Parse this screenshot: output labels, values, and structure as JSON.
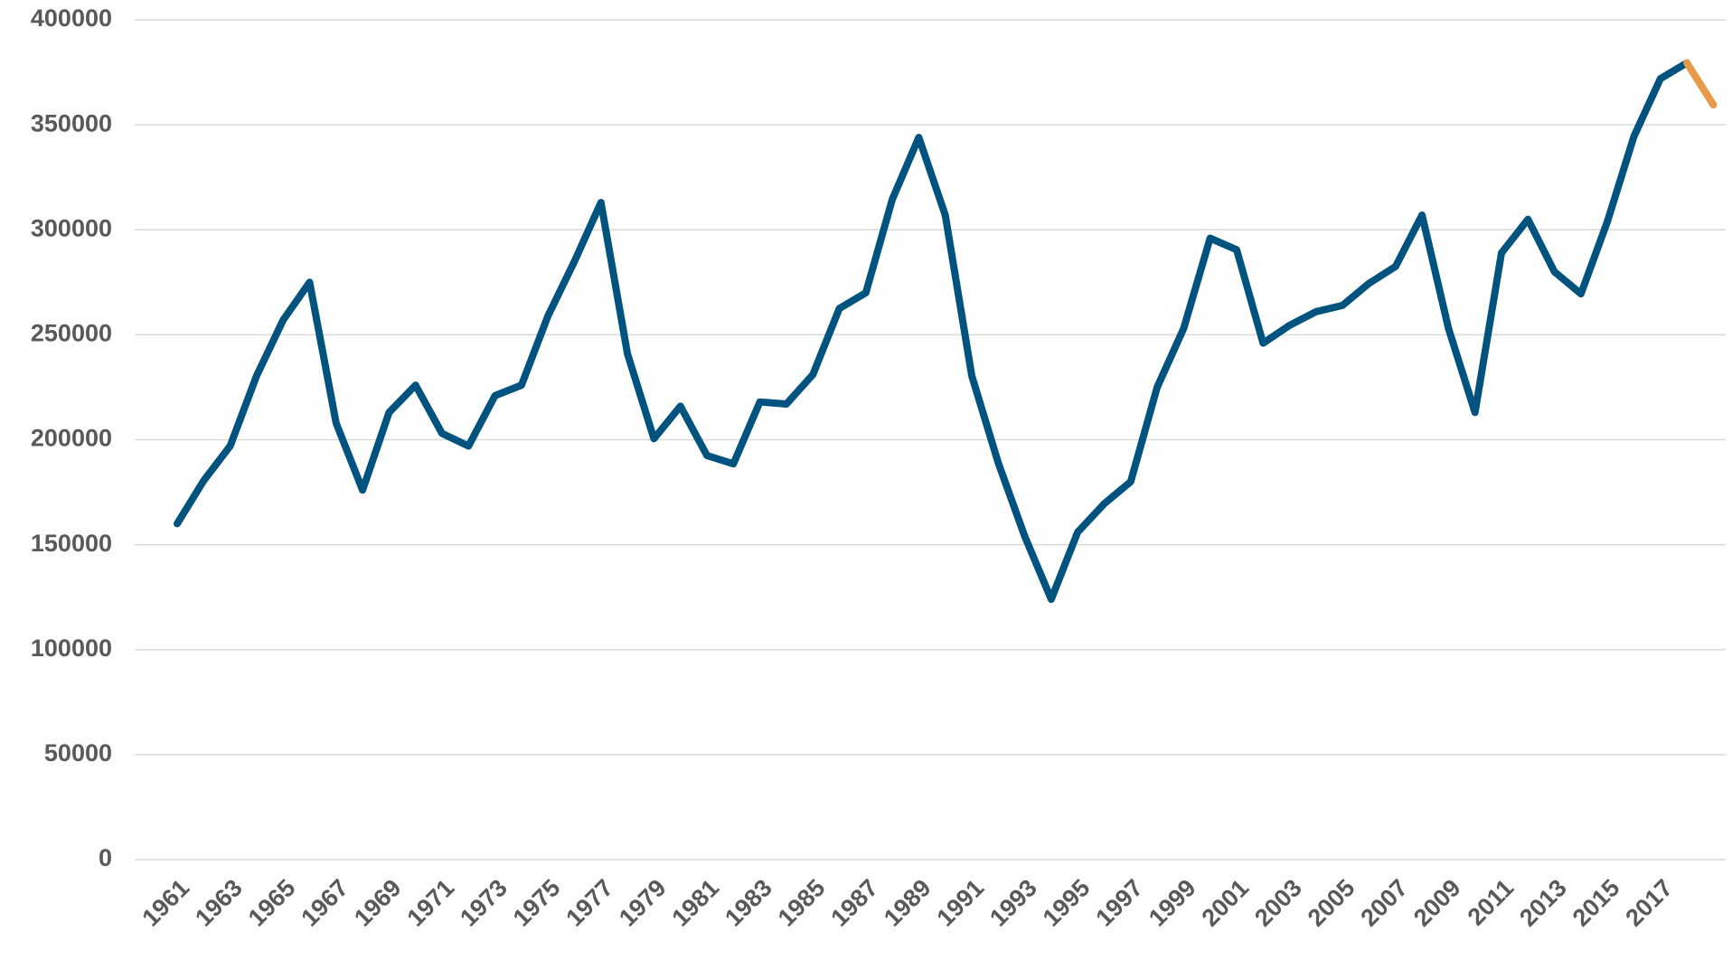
{
  "chart_data": {
    "type": "line",
    "categories": [
      "1961",
      null,
      "1963",
      null,
      "1965",
      null,
      "1967",
      null,
      "1969",
      null,
      "1971",
      null,
      "1973",
      null,
      "1975",
      null,
      "1977",
      null,
      "1979",
      null,
      "1981",
      null,
      "1983",
      null,
      "1985",
      null,
      "1987",
      null,
      "1989",
      null,
      "1991",
      null,
      "1993",
      null,
      "1995",
      null,
      "1997",
      null,
      "1999",
      null,
      "2001",
      null,
      "2003",
      null,
      "2005",
      null,
      "2007",
      null,
      "2009",
      null,
      "2011",
      null,
      "2013",
      null,
      "2015",
      null,
      "2017",
      null,
      null
    ],
    "series": [
      {
        "color": "#00537f",
        "values": [
          160000,
          180500,
          197000,
          230500,
          257000,
          275000,
          208000,
          176000,
          213000,
          226000,
          203000,
          197000,
          221000,
          226000,
          259000,
          285000,
          313000,
          241000,
          200500,
          216000,
          192500,
          188500,
          218000,
          217000,
          231000,
          262500,
          270000,
          314500,
          344000,
          307000,
          230500,
          189000,
          154000,
          124000,
          156000,
          169500,
          180000,
          225000,
          253000,
          296000,
          290500,
          246000,
          254500,
          261000,
          264000,
          274500,
          282500,
          307000,
          253000,
          213000,
          289000,
          305000,
          280000,
          269500,
          304000,
          344500,
          372000,
          379500,
          null
        ]
      },
      {
        "color": "#e8994a",
        "values": [
          null,
          null,
          null,
          null,
          null,
          null,
          null,
          null,
          null,
          null,
          null,
          null,
          null,
          null,
          null,
          null,
          null,
          null,
          null,
          null,
          null,
          null,
          null,
          null,
          null,
          null,
          null,
          null,
          null,
          null,
          null,
          null,
          null,
          null,
          null,
          null,
          null,
          null,
          null,
          null,
          null,
          null,
          null,
          null,
          null,
          null,
          null,
          null,
          null,
          null,
          null,
          null,
          null,
          null,
          null,
          null,
          null,
          379500,
          359500
        ]
      }
    ],
    "ylim": [
      0,
      400000
    ],
    "yticks": [
      0,
      50000,
      100000,
      150000,
      200000,
      250000,
      300000,
      350000,
      400000
    ],
    "grid": true
  }
}
